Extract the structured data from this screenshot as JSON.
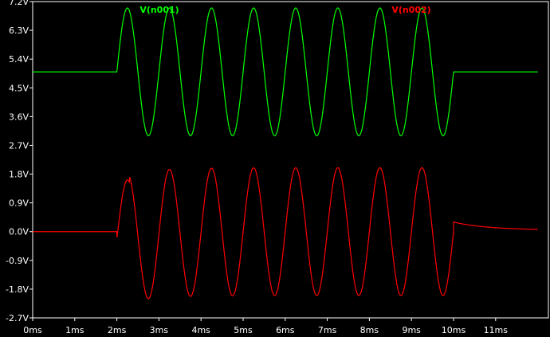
{
  "chart_data": {
    "type": "line",
    "title": "",
    "xlabel": "",
    "ylabel": "",
    "xlim": [
      0,
      12
    ],
    "ylim": [
      -2.7,
      7.2
    ],
    "x_ticks": [
      "0ms",
      "1ms",
      "2ms",
      "3ms",
      "4ms",
      "5ms",
      "6ms",
      "7ms",
      "8ms",
      "9ms",
      "10ms",
      "11ms"
    ],
    "y_ticks": [
      "7.2V",
      "6.3V",
      "5.4V",
      "4.5V",
      "3.6V",
      "2.7V",
      "1.8V",
      "0.9V",
      "0.0V",
      "-0.9V",
      "-1.8V",
      "-2.7V"
    ],
    "x_tick_values": [
      0,
      1,
      2,
      3,
      4,
      5,
      6,
      7,
      8,
      9,
      10,
      11
    ],
    "y_tick_values": [
      7.2,
      6.3,
      5.4,
      4.5,
      3.6,
      2.7,
      1.8,
      0.9,
      0.0,
      -0.9,
      -1.8,
      -2.7
    ],
    "grid": false,
    "legend_placement": "top",
    "series": [
      {
        "name": "V(n001)",
        "color": "#00ff00",
        "description": "5V DC offset with 1kHz sine of 2V amplitude between 2ms and 10ms",
        "baseline": 5.0,
        "amplitude": 2.0,
        "frequency_per_ms": 1,
        "burst_start_ms": 2.0,
        "burst_end_ms": 10.0,
        "t_end_ms": 12.0
      },
      {
        "name": "V(n002)",
        "color": "#ff0000",
        "description": "AC-coupled version of V(n001): zero baseline, sine of ~2V amplitude, decaying step after 10ms",
        "baseline": 0.0,
        "amplitude": 2.0,
        "frequency_per_ms": 1,
        "burst_start_ms": 2.0,
        "burst_end_ms": 10.0,
        "t_end_ms": 12.0,
        "first_peak": 1.72,
        "post_burst_start": 0.3,
        "post_burst_end": 0.05
      }
    ]
  }
}
